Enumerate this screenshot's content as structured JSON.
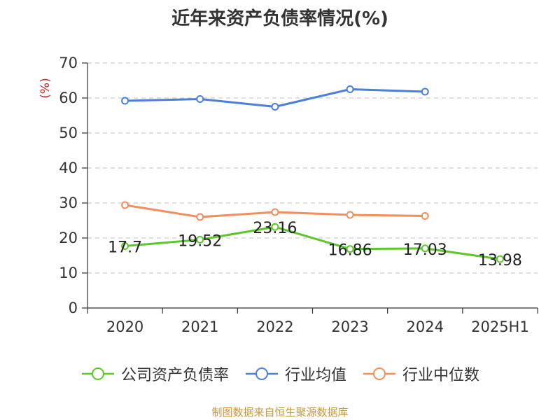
{
  "chart_data": {
    "type": "line",
    "title": "近年来资产负债率情况(%)",
    "ylabel": "(%)",
    "xlabel": "",
    "categories": [
      "2020",
      "2021",
      "2022",
      "2023",
      "2024",
      "2025H1"
    ],
    "ylim": [
      0,
      70
    ],
    "yticks": [
      0,
      10,
      20,
      30,
      40,
      50,
      60,
      70
    ],
    "grid": true,
    "legend_position": "bottom",
    "series": [
      {
        "name": "公司资产负债率",
        "color": "#5cc72a",
        "values": [
          17.7,
          19.52,
          23.16,
          16.86,
          17.03,
          13.98
        ],
        "labels": [
          "17.7",
          "19.52",
          "23.16",
          "16.86",
          "17.03",
          "13.98"
        ]
      },
      {
        "name": "行业均值",
        "color": "#4a7fdc",
        "values": [
          59.2,
          59.7,
          57.5,
          62.5,
          61.8,
          null
        ]
      },
      {
        "name": "行业中位数",
        "color": "#f28e5c",
        "values": [
          29.4,
          26.0,
          27.4,
          26.6,
          26.3,
          null
        ]
      }
    ]
  },
  "footer": {
    "source": "制图数据来自恒生聚源数据库"
  },
  "colors": {
    "ylabel": "#cc2222",
    "grid": "#cccccc",
    "axis": "#333333"
  }
}
